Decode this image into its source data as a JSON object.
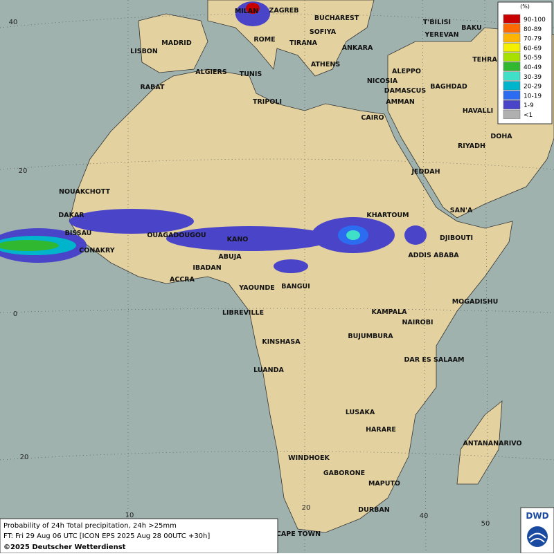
{
  "map": {
    "cities": [
      "MILAN",
      "ZAGREB",
      "BUCHAREST",
      "SOFIYA",
      "T'BILISI",
      "BAKU",
      "YEREVAN",
      "MADRID",
      "ROME",
      "TIRANA",
      "ANKARA",
      "LISBON",
      "TEHRA",
      "ATHENS",
      "ALGIERS",
      "TUNIS",
      "ALEPPO",
      "NICOSIA",
      "RABAT",
      "BAGHDAD",
      "DAMASCUS",
      "TRIPOLI",
      "AMMAN",
      "HAVALLI",
      "CAIRO",
      "DOHA",
      "RIYADH",
      "JEDDAH",
      "NOUAKCHOTT",
      "SAN'A",
      "DAKAR",
      "KHARTOUM",
      "BISSAU",
      "OUAGADOUGOU",
      "KANO",
      "DJIBOUTI",
      "CONAKRY",
      "ABUJA",
      "ADDIS ABABA",
      "IBADAN",
      "ACCRA",
      "YAOUNDE",
      "BANGUI",
      "MOGADISHU",
      "LIBREVILLE",
      "KAMPALA",
      "NAIROBI",
      "BUJUMBURA",
      "KINSHASA",
      "DAR ES SALAAM",
      "LUANDA",
      "LUSAKA",
      "HARARE",
      "ANTANANARIVO",
      "WINDHOEK",
      "GABORONE",
      "MAPUTO",
      "DURBAN",
      "CAPE TOWN"
    ],
    "lat_labels": [
      "40",
      "20",
      "0",
      "20"
    ],
    "lon_labels": [
      "10",
      "20",
      "40",
      "50"
    ]
  },
  "legend": {
    "unit": "(%)",
    "entries": [
      {
        "label": "90-100",
        "color": "#c80000"
      },
      {
        "label": "80-89",
        "color": "#ff6a00"
      },
      {
        "label": "70-79",
        "color": "#ffb400"
      },
      {
        "label": "60-69",
        "color": "#f4f000"
      },
      {
        "label": "50-59",
        "color": "#a8e000"
      },
      {
        "label": "40-49",
        "color": "#30b830"
      },
      {
        "label": "30-39",
        "color": "#40e0c8"
      },
      {
        "label": "20-29",
        "color": "#00b4cc"
      },
      {
        "label": "10-19",
        "color": "#2c6cf0"
      },
      {
        "label": "1-9",
        "color": "#4a44c8"
      },
      {
        "label": "<1",
        "color": "#b0b0b0"
      }
    ]
  },
  "footer": {
    "line1": "Probability of 24h Total precipitation, 24h >25mm",
    "line2": "FT: Fri 29 Aug 06 UTC [ICON EPS 2025 Aug 28 00UTC +30h]",
    "line3": "©2025 Deutscher Wetterdienst"
  },
  "logo": {
    "text": "DWD"
  }
}
